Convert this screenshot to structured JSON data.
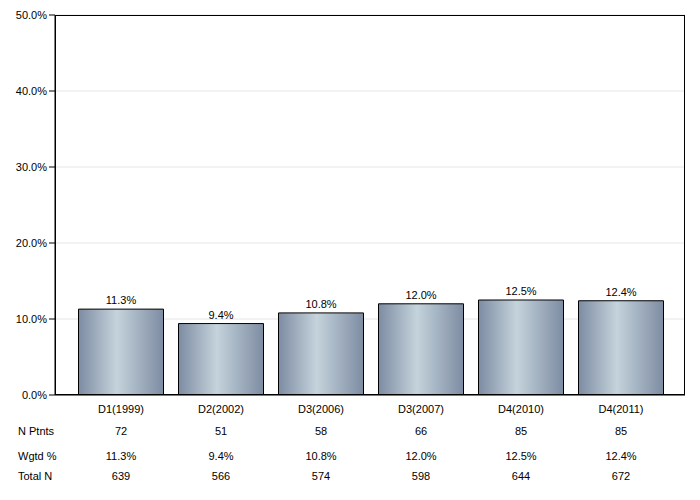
{
  "chart_data": {
    "type": "bar",
    "categories": [
      "D1(1999)",
      "D2(2002)",
      "D3(2006)",
      "D3(2007)",
      "D4(2010)",
      "D4(2011)"
    ],
    "values": [
      11.3,
      9.4,
      10.8,
      12.0,
      12.5,
      12.4
    ],
    "value_labels": [
      "11.3%",
      "9.4%",
      "10.8%",
      "12.0%",
      "12.5%",
      "12.4%"
    ],
    "data_labels": true,
    "color": "#c5d3dc",
    "ylim": [
      0,
      50
    ],
    "yticks": [
      {
        "value": 0,
        "label": "0.0%"
      },
      {
        "value": 10,
        "label": "10.0%"
      },
      {
        "value": 20,
        "label": "20.0%"
      },
      {
        "value": 30,
        "label": "30.0%"
      },
      {
        "value": 40,
        "label": "40.0%"
      },
      {
        "value": 50,
        "label": "50.0%"
      }
    ],
    "grid": true
  },
  "table": {
    "rows": [
      {
        "label": "N Ptnts",
        "cells": [
          "72",
          "51",
          "58",
          "66",
          "85",
          "85"
        ]
      },
      {
        "label": "Wgtd %",
        "cells": [
          "11.3%",
          "9.4%",
          "10.8%",
          "12.0%",
          "12.5%",
          "12.4%"
        ]
      },
      {
        "label": "Total N",
        "cells": [
          "639",
          "566",
          "574",
          "598",
          "644",
          "672"
        ]
      }
    ]
  }
}
